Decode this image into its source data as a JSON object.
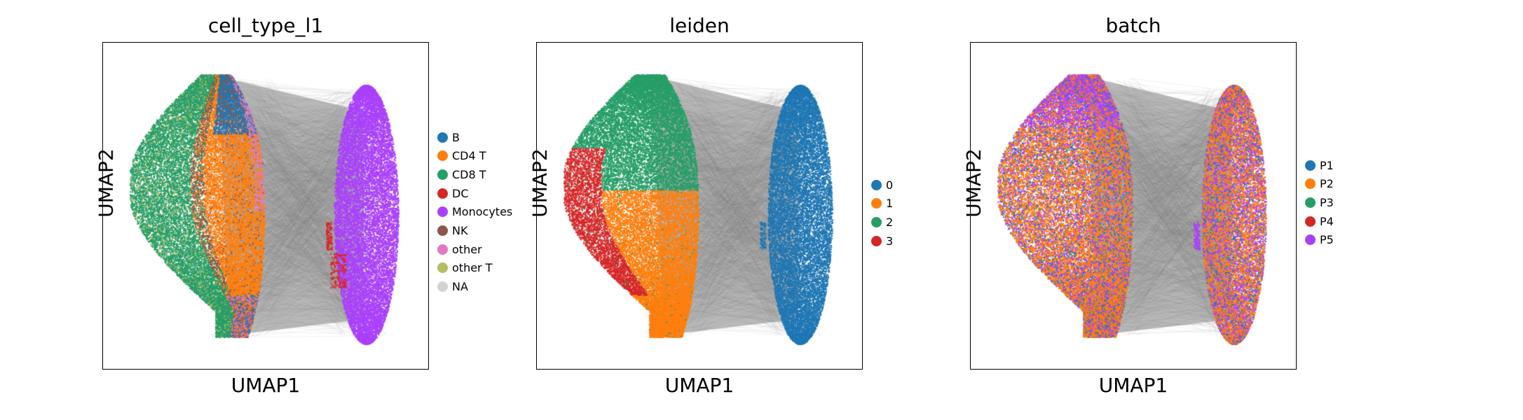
{
  "chart_data": [
    {
      "type": "scatter",
      "title": "cell_type_l1",
      "xlabel": "UMAP1",
      "ylabel": "UMAP2",
      "ticks": "none",
      "grid": false,
      "legend_placement": "right",
      "categories": [
        {
          "name": "B",
          "color": "#1f77b4"
        },
        {
          "name": "CD4 T",
          "color": "#ff7f0e"
        },
        {
          "name": "CD8 T",
          "color": "#279e68"
        },
        {
          "name": "DC",
          "color": "#d62728"
        },
        {
          "name": "Monocytes",
          "color": "#aa40fc"
        },
        {
          "name": "NK",
          "color": "#8c564b"
        },
        {
          "name": "other",
          "color": "#e377c2"
        },
        {
          "name": "other T",
          "color": "#b5bd61"
        },
        {
          "name": "NA",
          "color": "#d3d3d3"
        }
      ]
    },
    {
      "type": "scatter",
      "title": "leiden",
      "xlabel": "UMAP1",
      "ylabel": "UMAP2",
      "ticks": "none",
      "grid": false,
      "legend_placement": "right",
      "categories": [
        {
          "name": "0",
          "color": "#1f77b4"
        },
        {
          "name": "1",
          "color": "#ff7f0e"
        },
        {
          "name": "2",
          "color": "#279e68"
        },
        {
          "name": "3",
          "color": "#d62728"
        }
      ]
    },
    {
      "type": "scatter",
      "title": "batch",
      "xlabel": "UMAP1",
      "ylabel": "UMAP2",
      "ticks": "none",
      "grid": false,
      "legend_placement": "right",
      "categories": [
        {
          "name": "P1",
          "color": "#1f77b4"
        },
        {
          "name": "P2",
          "color": "#ff7f0e"
        },
        {
          "name": "P3",
          "color": "#279e68"
        },
        {
          "name": "P4",
          "color": "#d62728"
        },
        {
          "name": "P5",
          "color": "#aa40fc"
        }
      ]
    }
  ]
}
